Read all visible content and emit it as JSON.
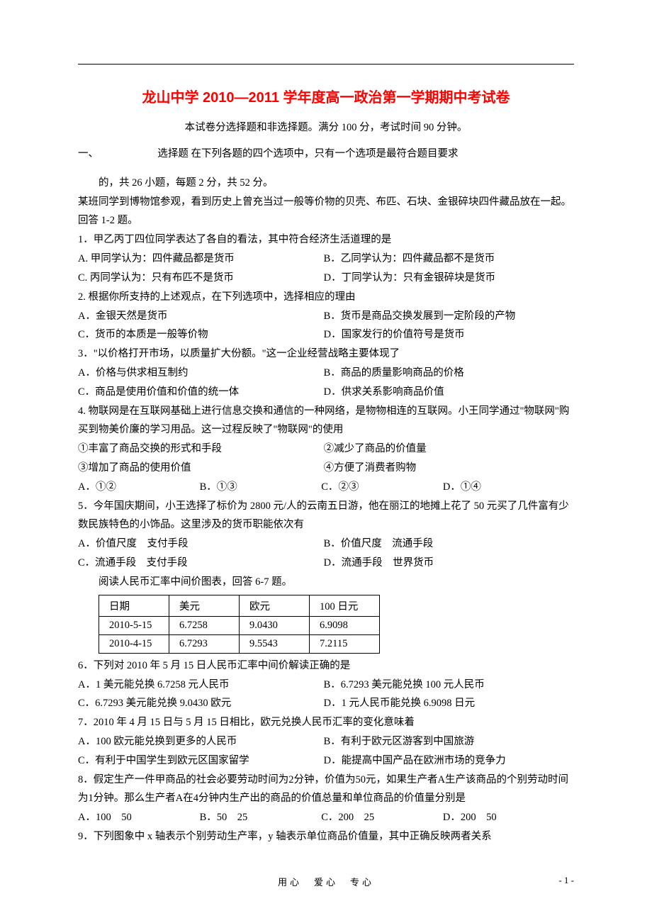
{
  "title": "龙山中学 2010—2011 学年度高一政治第一学期期中考试卷",
  "subtitle": "本试卷分选择题和非选择题。满分 100 分，考试时间 90 分钟。",
  "section1_line1": "一、",
  "section1_line2": "选择题  在下列各题的四个选项中，只有一个选项是最符合题目要求",
  "section1_line3": "的，共 26 小题，每题 2 分，共 52 分。",
  "passage1_p1": "某班同学到博物馆参观，看到历史上曾充当过一般等价物的贝壳、布匹、石块、金银碎块四件藏品放在一起。回答 1-2 题。",
  "q1": "1．甲乙丙丁四位同学表达了各自的看法，其中符合经济生活道理的是",
  "q1a": "A. 甲同学认为：四件藏品都是货币",
  "q1b": "B．乙同学认为：四件藏品都不是货币",
  "q1c": "C. 丙同学认为：只有布匹不是货币",
  "q1d": "D．丁同学认为：只有金银碎块是货币",
  "q2": "2. 根据你所支持的上述观点，在下列选项中，选择相应的理由",
  "q2a": "A．金银天然是货币",
  "q2b": "B．货币是商品交换发展到一定阶段的产物",
  "q2c": "C．货币的本质是一般等价物",
  "q2d": "D．国家发行的价值符号是货币",
  "q3": "3．\"以价格打开市场，以质量扩大份额。\"这一企业经营战略主要体现了",
  "q3a": "A．价格与供求相互制约",
  "q3b": "B．商品的质量影响商品的价格",
  "q3c": "C．商品是使用价值和价值的统一体",
  "q3d": "D．供求关系影响商品价值",
  "q4p1": "4. 物联网是在互联网基础上进行信息交换和通信的一种网络，是物物相连的互联网。小王同学通过\"物联网\"购买到物美价廉的学习用品。这一过程反映了\"物联网\"的使用",
  "q4s1": "①丰富了商品交换的形式和手段",
  "q4s2": "②减少了商品的价值量",
  "q4s3": "③增加了商品的使用价值",
  "q4s4": "④方便了消费者购物",
  "q4a": "A．①②",
  "q4b": "B．①③",
  "q4c": "C．②③",
  "q4d": "D．①④",
  "q5p1": "5．今年国庆期间，小王选择了标价为 2800 元/人的云南五日游，他在丽江的地摊上花了 50 元买了几件富有少数民族特色的小饰品。这里涉及的货币职能依次有",
  "q5a": "A．价值尺度　支付手段",
  "q5b": "B．价值尺度　流通手段",
  "q5c": "C．流通手段　支付手段",
  "q5d": "D．流通手段　世界货币",
  "tbl_intro": "阅读人民币汇率中间价图表，回答 6-7 题。",
  "tbl": {
    "h1": "日期",
    "h2": "美元",
    "h3": "欧元",
    "h4": "100 日元",
    "r1c1": "2010-5-15",
    "r1c2": "6.7258",
    "r1c3": "9.0430",
    "r1c4": "6.9098",
    "r2c1": "2010-4-15",
    "r2c2": "6.7293",
    "r2c3": "9.5543",
    "r2c4": "7.2115"
  },
  "q6": "6．下列对 2010 年 5 月 15 日人民币汇率中间价解读正确的是",
  "q6a": "A．1 美元能兑换 6.7258 元人民币",
  "q6b": "B．6.7293 美元能兑换 100 元人民币",
  "q6c": "C．6.7293 美元能兑换 9.0430 欧元",
  "q6d": "D．1 元人民币能兑换 6.9098 日元",
  "q7": "7．2010 年 4 月 15 日与 5 月 15 日相比，欧元兑换人民币汇率的变化意味着",
  "q7a": "A．100 欧元能兑换到更多的人民币",
  "q7b": "B．有利于欧元区游客到中国旅游",
  "q7c": "C．有利于中国学生到欧元区国家留学",
  "q7d": "D．能提高中国产品在欧洲市场的竞争力",
  "q8p1": "8．假定生产一件甲商品的社会必要劳动时间为2分钟，价值为50元，如果生产者A生产该商品的个别劳动时间为1分钟。那么生产者A在4分钟内生产出的商品的价值总量和单位商品的价值量分别是",
  "q8a": "A．100　50",
  "q8b": "B．50　25",
  "q8c": "C．200　25",
  "q8d": "D．200　50",
  "q9": "9．下列图象中 x 轴表示个别劳动生产率，y 轴表示单位商品价值量，其中正确反映两者关系",
  "footer_motto": "用心　爱心　专心",
  "footer_page": "- 1 -"
}
